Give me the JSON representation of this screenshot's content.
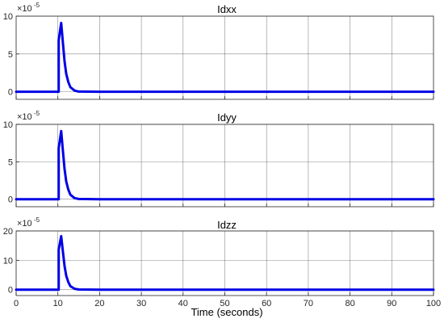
{
  "figure": {
    "xlabel": "Time (seconds)",
    "line_color": "#0000E6",
    "background": "#FFFFFF"
  },
  "chart_data": [
    {
      "type": "line",
      "title": "Idxx",
      "xlabel": "",
      "ylabel": "",
      "xlim": [
        0,
        100
      ],
      "ylim": [
        -1,
        10
      ],
      "x_ticks": [
        0,
        10,
        20,
        30,
        40,
        50,
        60,
        70,
        80,
        90,
        100
      ],
      "y_ticks": [
        0,
        5,
        10
      ],
      "y_exponent_base": "×10",
      "y_exponent": "-5",
      "grid": true,
      "series": [
        {
          "x": [
            0,
            10.2,
            10.2,
            10.8,
            11.2,
            11.6,
            12.0,
            12.5,
            13.0,
            14.0,
            15.0,
            20,
            100
          ],
          "y": [
            0,
            0,
            6.8,
            9.1,
            6.5,
            4.0,
            2.4,
            1.3,
            0.6,
            0.15,
            0.03,
            0,
            0
          ]
        }
      ]
    },
    {
      "type": "line",
      "title": "Idyy",
      "xlabel": "",
      "ylabel": "",
      "xlim": [
        0,
        100
      ],
      "ylim": [
        -1,
        10
      ],
      "x_ticks": [
        0,
        10,
        20,
        30,
        40,
        50,
        60,
        70,
        80,
        90,
        100
      ],
      "y_ticks": [
        0,
        5,
        10
      ],
      "y_exponent_base": "×10",
      "y_exponent": "-5",
      "grid": true,
      "series": [
        {
          "x": [
            0,
            10.2,
            10.2,
            10.8,
            11.2,
            11.6,
            12.0,
            12.5,
            13.0,
            14.0,
            15.0,
            20,
            100
          ],
          "y": [
            0,
            0,
            6.8,
            9.1,
            6.5,
            4.0,
            2.4,
            1.3,
            0.6,
            0.15,
            0.03,
            0,
            0
          ]
        }
      ]
    },
    {
      "type": "line",
      "title": "Idzz",
      "xlabel": "Time (seconds)",
      "ylabel": "",
      "xlim": [
        0,
        100
      ],
      "ylim": [
        -2,
        20
      ],
      "x_ticks": [
        0,
        10,
        20,
        30,
        40,
        50,
        60,
        70,
        80,
        90,
        100
      ],
      "y_ticks": [
        0,
        10,
        20
      ],
      "y_exponent_base": "×10",
      "y_exponent": "-5",
      "grid": true,
      "series": [
        {
          "x": [
            0,
            10.2,
            10.2,
            10.8,
            11.2,
            11.6,
            12.0,
            12.5,
            13.0,
            14.0,
            15.0,
            20,
            100
          ],
          "y": [
            0,
            0,
            13.6,
            18.2,
            13.0,
            8.0,
            4.8,
            2.6,
            1.2,
            0.3,
            0.06,
            0,
            0
          ]
        }
      ]
    }
  ]
}
